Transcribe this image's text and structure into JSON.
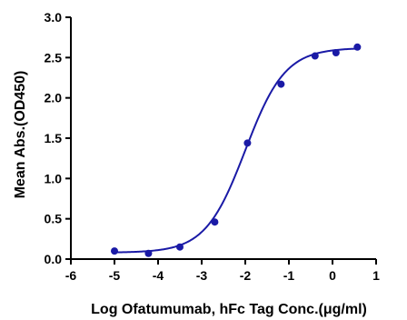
{
  "chart_data": {
    "type": "scatter",
    "xlabel": "Log Ofatumumab, hFc Tag Conc.(μg/ml)",
    "ylabel": "Mean Abs.(OD450)",
    "xlim": [
      -6,
      1
    ],
    "ylim": [
      0,
      3
    ],
    "x_ticks": [
      "-6",
      "-5",
      "-4",
      "-3",
      "-2",
      "-1",
      "0",
      "1"
    ],
    "y_ticks": [
      "0.0",
      "0.5",
      "1.0",
      "1.5",
      "2.0",
      "2.5",
      "3.0"
    ],
    "grid": false,
    "color": "#1a1aa6",
    "series": [
      {
        "x": [
          -5.0,
          -4.22,
          -3.5,
          -2.7,
          -1.95,
          -1.18,
          -0.4,
          0.08,
          0.57
        ],
        "y": [
          0.1,
          0.07,
          0.15,
          0.46,
          1.44,
          2.17,
          2.52,
          2.56,
          2.63
        ]
      }
    ],
    "fit": {
      "model": "4PL",
      "bottom": 0.08,
      "top": 2.62,
      "logEC50": -2.0,
      "hill": 0.95
    }
  }
}
